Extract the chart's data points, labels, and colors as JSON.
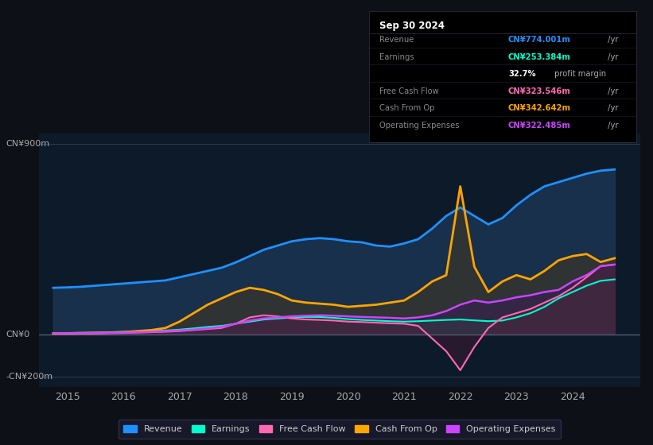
{
  "background_color": "#0d1117",
  "chart_bg": "#0d1a2a",
  "title": "Sep 30 2024",
  "ylabel_top": "CN¥900m",
  "ylabel_zero": "CN¥0",
  "ylabel_neg": "-CN¥200m",
  "ylim": [
    -250,
    950
  ],
  "xlim": [
    2014.5,
    2025.2
  ],
  "xticks": [
    2015,
    2016,
    2017,
    2018,
    2019,
    2020,
    2021,
    2022,
    2023,
    2024
  ],
  "years": [
    2014.75,
    2015.0,
    2015.25,
    2015.5,
    2015.75,
    2016.0,
    2016.25,
    2016.5,
    2016.75,
    2017.0,
    2017.25,
    2017.5,
    2017.75,
    2018.0,
    2018.25,
    2018.5,
    2018.75,
    2019.0,
    2019.25,
    2019.5,
    2019.75,
    2020.0,
    2020.25,
    2020.5,
    2020.75,
    2021.0,
    2021.25,
    2021.5,
    2021.75,
    2022.0,
    2022.25,
    2022.5,
    2022.75,
    2023.0,
    2023.25,
    2023.5,
    2023.75,
    2024.0,
    2024.25,
    2024.5,
    2024.75
  ],
  "revenue": [
    220,
    222,
    225,
    230,
    235,
    240,
    245,
    250,
    255,
    270,
    285,
    300,
    315,
    340,
    370,
    400,
    420,
    440,
    450,
    455,
    450,
    440,
    435,
    420,
    415,
    430,
    450,
    500,
    560,
    600,
    560,
    520,
    550,
    610,
    660,
    700,
    720,
    740,
    760,
    774,
    780
  ],
  "earnings": [
    5,
    6,
    7,
    8,
    10,
    12,
    14,
    16,
    18,
    22,
    28,
    35,
    40,
    50,
    60,
    70,
    75,
    80,
    82,
    82,
    78,
    72,
    68,
    65,
    62,
    60,
    62,
    65,
    68,
    70,
    66,
    62,
    65,
    80,
    100,
    130,
    170,
    200,
    230,
    253,
    260
  ],
  "free_cash_flow": [
    2,
    2,
    3,
    4,
    5,
    6,
    8,
    10,
    12,
    15,
    20,
    25,
    30,
    50,
    80,
    90,
    85,
    75,
    70,
    68,
    65,
    60,
    58,
    55,
    52,
    50,
    40,
    -20,
    -80,
    -170,
    -60,
    30,
    80,
    100,
    120,
    150,
    180,
    220,
    270,
    323,
    330
  ],
  "cash_from_op": [
    5,
    5,
    6,
    7,
    8,
    10,
    15,
    20,
    30,
    60,
    100,
    140,
    170,
    200,
    220,
    210,
    190,
    160,
    150,
    145,
    140,
    130,
    135,
    140,
    150,
    160,
    200,
    250,
    280,
    700,
    320,
    200,
    250,
    280,
    260,
    300,
    350,
    370,
    380,
    342,
    360
  ],
  "operating_expenses": [
    5,
    5,
    5,
    6,
    7,
    8,
    10,
    12,
    15,
    18,
    22,
    28,
    35,
    50,
    65,
    75,
    80,
    85,
    88,
    90,
    88,
    85,
    82,
    80,
    78,
    75,
    80,
    90,
    110,
    140,
    160,
    150,
    160,
    175,
    185,
    200,
    210,
    250,
    280,
    322,
    330
  ],
  "line_colors": {
    "revenue": "#1e90ff",
    "earnings": "#00ffcc",
    "free_cash_flow": "#ff69b4",
    "cash_from_op": "#ffa500",
    "operating_expenses": "#cc44ff"
  },
  "fill_colors": {
    "revenue": "#1e3a5a",
    "earnings": "#1a5a4a",
    "free_cash_flow": "#5a1a3a",
    "cash_from_op": "#5a3a0a",
    "operating_expenses": "#3a1a5a"
  },
  "info_title": "Sep 30 2024",
  "info_rows": [
    {
      "label": "Revenue",
      "value": "CN¥774.001m",
      "suffix": " /yr",
      "color": "#1e90ff"
    },
    {
      "label": "Earnings",
      "value": "CN¥253.384m",
      "suffix": " /yr",
      "color": "#00ffcc"
    },
    {
      "label": "",
      "value": "32.7%",
      "suffix": " profit margin",
      "color": "#ffffff"
    },
    {
      "label": "Free Cash Flow",
      "value": "CN¥323.546m",
      "suffix": " /yr",
      "color": "#ff69b4"
    },
    {
      "label": "Cash From Op",
      "value": "CN¥342.642m",
      "suffix": " /yr",
      "color": "#ffa500"
    },
    {
      "label": "Operating Expenses",
      "value": "CN¥322.485m",
      "suffix": " /yr",
      "color": "#cc44ff"
    }
  ],
  "legend": [
    {
      "label": "Revenue",
      "color": "#1e90ff"
    },
    {
      "label": "Earnings",
      "color": "#00ffcc"
    },
    {
      "label": "Free Cash Flow",
      "color": "#ff69b4"
    },
    {
      "label": "Cash From Op",
      "color": "#ffa500"
    },
    {
      "label": "Operating Expenses",
      "color": "#cc44ff"
    }
  ]
}
